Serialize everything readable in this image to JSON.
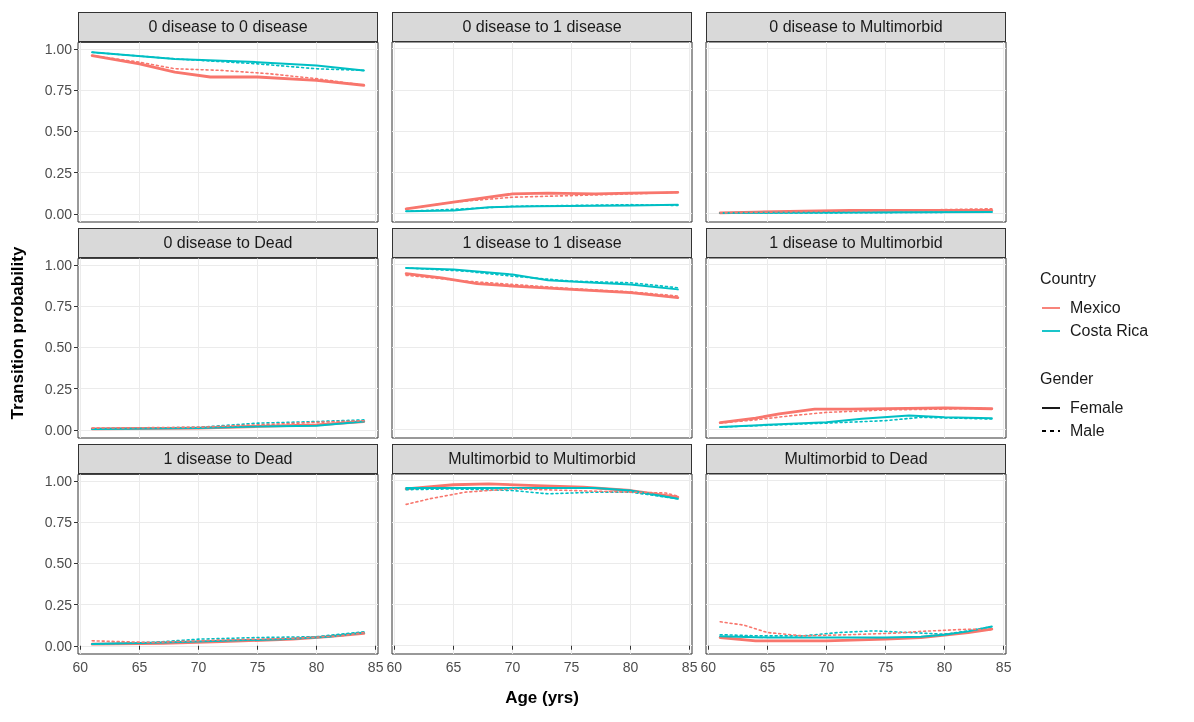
{
  "chart_data": [
    {
      "type": "line",
      "title": "0 disease to 0 disease",
      "tick_labels": "y",
      "grid": true,
      "xlim": [
        59.8,
        85.2
      ],
      "ylim": [
        -0.05,
        1.04
      ],
      "xticks": [
        60,
        65,
        70,
        75,
        80,
        85
      ],
      "yticks": [
        {
          "value": 0,
          "label": "0.00"
        },
        {
          "value": 0.25,
          "label": "0.25"
        },
        {
          "value": 0.5,
          "label": "0.50"
        },
        {
          "value": 0.75,
          "label": "0.75"
        },
        {
          "value": 1,
          "label": "1.00"
        }
      ],
      "series": [
        {
          "color": "#f8766d",
          "line_style": "solid",
          "x": [
            61,
            65,
            68,
            71,
            75,
            80,
            84
          ],
          "values": [
            0.96,
            0.91,
            0.86,
            0.83,
            0.83,
            0.81,
            0.78
          ]
        },
        {
          "color": "#f8766d",
          "line_style": "dashed",
          "x": [
            61,
            65,
            68,
            72,
            76,
            80,
            84
          ],
          "values": [
            0.96,
            0.92,
            0.88,
            0.87,
            0.85,
            0.82,
            0.78
          ]
        },
        {
          "color": "#00bfc4",
          "line_style": "solid",
          "x": [
            61,
            68,
            75,
            80,
            84
          ],
          "values": [
            0.98,
            0.94,
            0.92,
            0.9,
            0.87
          ]
        },
        {
          "color": "#00bfc4",
          "line_style": "dashed",
          "x": [
            61,
            68,
            75,
            80,
            84
          ],
          "values": [
            0.98,
            0.94,
            0.91,
            0.88,
            0.87
          ]
        }
      ]
    },
    {
      "type": "line",
      "title": "0 disease to 1 disease",
      "tick_labels": false,
      "grid": true,
      "xlim": [
        59.8,
        85.2
      ],
      "ylim": [
        -0.05,
        1.04
      ],
      "xticks": [
        60,
        65,
        70,
        75,
        80,
        85
      ],
      "yticks": [
        0,
        0.25,
        0.5,
        0.75,
        1
      ],
      "series": [
        {
          "color": "#f8766d",
          "line_style": "solid",
          "x": [
            61,
            65,
            68,
            70,
            73,
            77,
            80,
            84
          ],
          "values": [
            0.03,
            0.07,
            0.1,
            0.12,
            0.125,
            0.12,
            0.125,
            0.13
          ]
        },
        {
          "color": "#f8766d",
          "line_style": "dashed",
          "x": [
            61,
            65,
            70,
            75,
            80,
            84
          ],
          "values": [
            0.03,
            0.07,
            0.1,
            0.11,
            0.12,
            0.13
          ]
        },
        {
          "color": "#00bfc4",
          "line_style": "solid",
          "x": [
            61,
            65,
            68,
            72,
            80,
            84
          ],
          "values": [
            0.015,
            0.02,
            0.04,
            0.045,
            0.05,
            0.055
          ]
        },
        {
          "color": "#00bfc4",
          "line_style": "dashed",
          "x": [
            61,
            66,
            70,
            75,
            80,
            84
          ],
          "values": [
            0.015,
            0.03,
            0.045,
            0.05,
            0.055,
            0.05
          ]
        }
      ]
    },
    {
      "type": "line",
      "title": "0 disease to Multimorbid",
      "tick_labels": false,
      "grid": true,
      "xlim": [
        59.8,
        85.2
      ],
      "ylim": [
        -0.05,
        1.04
      ],
      "xticks": [
        60,
        65,
        70,
        75,
        80,
        85
      ],
      "yticks": [
        0,
        0.25,
        0.5,
        0.75,
        1
      ],
      "series": [
        {
          "color": "#f8766d",
          "line_style": "solid",
          "x": [
            61,
            64,
            68,
            72,
            84
          ],
          "values": [
            0.005,
            0.01,
            0.015,
            0.02,
            0.02
          ]
        },
        {
          "color": "#f8766d",
          "line_style": "dashed",
          "x": [
            61,
            70,
            80,
            84
          ],
          "values": [
            0.005,
            0.015,
            0.025,
            0.03
          ]
        },
        {
          "color": "#00bfc4",
          "line_style": "solid",
          "x": [
            61,
            84
          ],
          "values": [
            0.005,
            0.01
          ]
        },
        {
          "color": "#00bfc4",
          "line_style": "dashed",
          "x": [
            61,
            70,
            84
          ],
          "values": [
            0.005,
            0.005,
            0.01
          ]
        }
      ]
    },
    {
      "type": "line",
      "title": "0 disease to Dead",
      "ylabel": "Transition probability",
      "tick_labels": "y",
      "grid": true,
      "xlim": [
        59.8,
        85.2
      ],
      "ylim": [
        -0.05,
        1.04
      ],
      "xticks": [
        60,
        65,
        70,
        75,
        80,
        85
      ],
      "yticks": [
        {
          "value": 0,
          "label": "0.00"
        },
        {
          "value": 0.25,
          "label": "0.25"
        },
        {
          "value": 0.5,
          "label": "0.50"
        },
        {
          "value": 0.75,
          "label": "0.75"
        },
        {
          "value": 1,
          "label": "1.00"
        }
      ],
      "series": [
        {
          "color": "#f8766d",
          "line_style": "solid",
          "x": [
            61,
            70,
            75,
            80,
            84
          ],
          "values": [
            0.005,
            0.01,
            0.02,
            0.03,
            0.05
          ]
        },
        {
          "color": "#f8766d",
          "line_style": "dashed",
          "x": [
            61,
            70,
            75,
            80,
            84
          ],
          "values": [
            0.01,
            0.015,
            0.03,
            0.045,
            0.055
          ]
        },
        {
          "color": "#00bfc4",
          "line_style": "solid",
          "x": [
            61,
            70,
            75,
            80,
            84
          ],
          "values": [
            0.005,
            0.01,
            0.02,
            0.025,
            0.05
          ]
        },
        {
          "color": "#00bfc4",
          "line_style": "dashed",
          "x": [
            61,
            70,
            75,
            80,
            84
          ],
          "values": [
            0.005,
            0.015,
            0.04,
            0.05,
            0.06
          ]
        }
      ]
    },
    {
      "type": "line",
      "title": "1 disease to 1 disease",
      "tick_labels": false,
      "grid": true,
      "xlim": [
        59.8,
        85.2
      ],
      "ylim": [
        -0.05,
        1.04
      ],
      "xticks": [
        60,
        65,
        70,
        75,
        80,
        85
      ],
      "yticks": [
        0,
        0.25,
        0.5,
        0.75,
        1
      ],
      "series": [
        {
          "color": "#f8766d",
          "line_style": "solid",
          "x": [
            61,
            64,
            67,
            70,
            75,
            80,
            84
          ],
          "values": [
            0.945,
            0.92,
            0.885,
            0.87,
            0.85,
            0.83,
            0.8
          ]
        },
        {
          "color": "#f8766d",
          "line_style": "dashed",
          "x": [
            61,
            66,
            70,
            75,
            80,
            84
          ],
          "values": [
            0.935,
            0.9,
            0.88,
            0.855,
            0.835,
            0.81
          ]
        },
        {
          "color": "#00bfc4",
          "line_style": "solid",
          "x": [
            61,
            65,
            70,
            73,
            77,
            80,
            84
          ],
          "values": [
            0.98,
            0.97,
            0.94,
            0.905,
            0.89,
            0.88,
            0.85
          ]
        },
        {
          "color": "#00bfc4",
          "line_style": "dashed",
          "x": [
            61,
            66,
            70,
            75,
            80,
            84
          ],
          "values": [
            0.98,
            0.96,
            0.93,
            0.9,
            0.89,
            0.86
          ]
        }
      ]
    },
    {
      "type": "line",
      "title": "1 disease to Multimorbid",
      "tick_labels": false,
      "grid": true,
      "xlim": [
        59.8,
        85.2
      ],
      "ylim": [
        -0.05,
        1.04
      ],
      "xticks": [
        60,
        65,
        70,
        75,
        80,
        85
      ],
      "yticks": [
        0,
        0.25,
        0.5,
        0.75,
        1
      ],
      "series": [
        {
          "color": "#f8766d",
          "line_style": "solid",
          "x": [
            61,
            64,
            66,
            69,
            72,
            80,
            84
          ],
          "values": [
            0.043,
            0.07,
            0.096,
            0.125,
            0.125,
            0.133,
            0.127
          ]
        },
        {
          "color": "#f8766d",
          "line_style": "dashed",
          "x": [
            61,
            64,
            67,
            70,
            75,
            80,
            83,
            84
          ],
          "values": [
            0.04,
            0.06,
            0.085,
            0.105,
            0.12,
            0.125,
            0.13,
            0.125
          ]
        },
        {
          "color": "#00bfc4",
          "line_style": "solid",
          "x": [
            61,
            65,
            70,
            73,
            77,
            80,
            84
          ],
          "values": [
            0.016,
            0.03,
            0.045,
            0.067,
            0.086,
            0.076,
            0.07
          ]
        },
        {
          "color": "#00bfc4",
          "line_style": "dashed",
          "x": [
            61,
            66,
            70,
            75,
            78,
            81,
            84
          ],
          "values": [
            0.016,
            0.03,
            0.04,
            0.055,
            0.075,
            0.07,
            0.065
          ]
        }
      ]
    },
    {
      "type": "line",
      "title": "1 disease to Dead",
      "grid": true,
      "xlim": [
        59.8,
        85.2
      ],
      "ylim": [
        -0.05,
        1.04
      ],
      "xticks": [
        60,
        65,
        70,
        75,
        80,
        85
      ],
      "yticks": [
        {
          "value": 0,
          "label": "0.00"
        },
        {
          "value": 0.25,
          "label": "0.25"
        },
        {
          "value": 0.5,
          "label": "0.50"
        },
        {
          "value": 0.75,
          "label": "0.75"
        },
        {
          "value": 1,
          "label": "1.00"
        }
      ],
      "series": [
        {
          "color": "#f8766d",
          "line_style": "solid",
          "x": [
            61,
            67,
            72,
            78,
            81,
            84
          ],
          "values": [
            0.01,
            0.015,
            0.025,
            0.04,
            0.055,
            0.075
          ]
        },
        {
          "color": "#f8766d",
          "line_style": "dashed",
          "x": [
            61,
            66,
            72,
            78,
            82,
            84
          ],
          "values": [
            0.03,
            0.02,
            0.035,
            0.045,
            0.06,
            0.08
          ]
        },
        {
          "color": "#00bfc4",
          "line_style": "solid",
          "x": [
            61,
            67,
            72,
            77,
            81,
            84
          ],
          "values": [
            0.01,
            0.02,
            0.03,
            0.04,
            0.055,
            0.08
          ]
        },
        {
          "color": "#00bfc4",
          "line_style": "dashed",
          "x": [
            61,
            66,
            70,
            75,
            80,
            84
          ],
          "values": [
            0.01,
            0.02,
            0.04,
            0.05,
            0.055,
            0.085
          ]
        }
      ]
    },
    {
      "type": "line",
      "title": "Multimorbid to Multimorbid",
      "xlabel": "Age (yrs)",
      "tick_labels": "x",
      "grid": true,
      "xlim": [
        59.8,
        85.2
      ],
      "ylim": [
        -0.05,
        1.04
      ],
      "xticks": [
        60,
        65,
        70,
        75,
        80,
        85
      ],
      "yticks": [
        0,
        0.25,
        0.5,
        0.75,
        1
      ],
      "series": [
        {
          "color": "#f8766d",
          "line_style": "solid",
          "x": [
            61,
            65,
            68,
            72,
            76,
            80,
            84
          ],
          "values": [
            0.95,
            0.975,
            0.98,
            0.97,
            0.96,
            0.94,
            0.9
          ]
        },
        {
          "color": "#f8766d",
          "line_style": "dashed",
          "x": [
            61,
            63,
            66,
            70,
            75,
            80,
            83,
            84
          ],
          "values": [
            0.856,
            0.89,
            0.93,
            0.95,
            0.94,
            0.93,
            0.925,
            0.905
          ]
        },
        {
          "color": "#00bfc4",
          "line_style": "solid",
          "x": [
            61,
            65,
            70,
            75,
            77,
            80,
            84
          ],
          "values": [
            0.955,
            0.955,
            0.955,
            0.955,
            0.955,
            0.94,
            0.89
          ]
        },
        {
          "color": "#00bfc4",
          "line_style": "dashed",
          "x": [
            61,
            65,
            70,
            73,
            77,
            80,
            84
          ],
          "values": [
            0.945,
            0.95,
            0.94,
            0.92,
            0.93,
            0.93,
            0.89
          ]
        }
      ]
    },
    {
      "type": "line",
      "title": "Multimorbid to Dead",
      "tick_labels": "x",
      "grid": true,
      "xlim": [
        59.8,
        85.2
      ],
      "ylim": [
        -0.05,
        1.04
      ],
      "xticks": [
        60,
        65,
        70,
        75,
        80,
        85
      ],
      "yticks": [
        0,
        0.25,
        0.5,
        0.75,
        1
      ],
      "series": [
        {
          "color": "#f8766d",
          "line_style": "solid",
          "x": [
            61,
            64,
            70,
            75,
            78,
            80,
            82,
            84
          ],
          "values": [
            0.05,
            0.03,
            0.03,
            0.04,
            0.05,
            0.065,
            0.08,
            0.1
          ]
        },
        {
          "color": "#f8766d",
          "line_style": "dashed",
          "x": [
            61,
            63,
            65,
            68,
            72,
            76,
            78,
            82,
            84
          ],
          "values": [
            0.145,
            0.125,
            0.08,
            0.06,
            0.067,
            0.077,
            0.087,
            0.1,
            0.097
          ]
        },
        {
          "color": "#00bfc4",
          "line_style": "solid",
          "x": [
            61,
            65,
            70,
            75,
            78,
            80,
            82,
            84
          ],
          "values": [
            0.057,
            0.05,
            0.05,
            0.05,
            0.055,
            0.067,
            0.087,
            0.116
          ]
        },
        {
          "color": "#00bfc4",
          "line_style": "dashed",
          "x": [
            61,
            64,
            68,
            71,
            74,
            77,
            80,
            82,
            84
          ],
          "values": [
            0.067,
            0.06,
            0.06,
            0.08,
            0.09,
            0.08,
            0.07,
            0.09,
            0.116
          ]
        }
      ]
    },
    {
      "type": "other",
      "legend_title": "Country",
      "series": [
        {
          "name": "Mexico",
          "color": "#f8766d",
          "line_style": "solid"
        },
        {
          "name": "Costa Rica",
          "color": "#00bfc4",
          "line_style": "solid"
        }
      ]
    },
    {
      "type": "other",
      "legend_title": "Gender",
      "series": [
        {
          "name": "Female",
          "color": "#000000",
          "line_style": "solid"
        },
        {
          "name": "Male",
          "color": "#000000",
          "line_style": "dashed"
        }
      ]
    }
  ]
}
